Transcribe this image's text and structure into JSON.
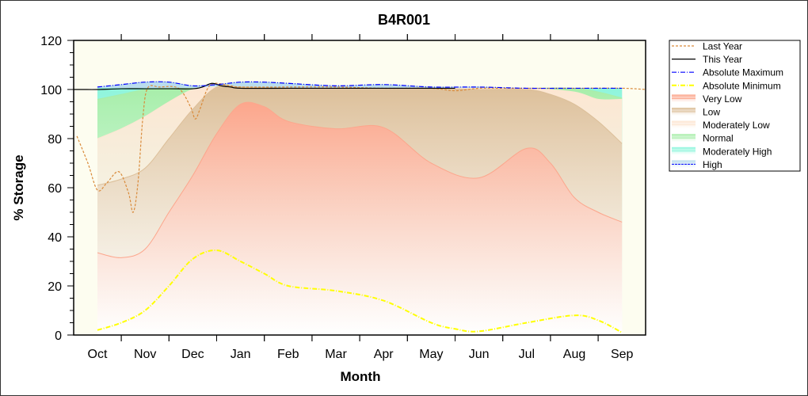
{
  "chart_data": {
    "type": "area",
    "title": "B4R001",
    "xlabel": "Month",
    "ylabel": "% Storage",
    "ylim": [
      0,
      120
    ],
    "yticks": [
      0,
      20,
      40,
      60,
      80,
      100,
      120
    ],
    "categories": [
      "Oct",
      "Nov",
      "Dec",
      "Jan",
      "Feb",
      "Mar",
      "Apr",
      "May",
      "Jun",
      "Jul",
      "Aug",
      "Sep"
    ],
    "legend_position": "right",
    "bands": [
      {
        "name": "High",
        "color": "#b9dced",
        "x": [
          0,
          0.5,
          1,
          1.5,
          2,
          2.5,
          3,
          3.5,
          4,
          5,
          6,
          7,
          8,
          9,
          10,
          11
        ],
        "top": [
          101,
          102,
          103,
          103,
          101.5,
          102,
          103,
          103,
          102.5,
          101.5,
          102,
          101,
          101,
          100.5,
          100.5,
          100.5
        ]
      },
      {
        "name": "Moderately High",
        "color": "#8ff5dc",
        "x": [
          0,
          1,
          2,
          3,
          4,
          5,
          6,
          7,
          8,
          9,
          10,
          11
        ],
        "top": [
          100.5,
          100.5,
          100.5,
          100.5,
          100.5,
          100.5,
          100.5,
          100.5,
          100.5,
          100.5,
          100.5,
          100.5
        ]
      },
      {
        "name": "Normal",
        "color": "#a8eeaa",
        "x": [
          0,
          0.5,
          1,
          1.5,
          2,
          2.5,
          3,
          4,
          5,
          6,
          7,
          8,
          9,
          10,
          10.5,
          11
        ],
        "top": [
          96,
          98,
          100,
          100.5,
          100.5,
          100.5,
          100.5,
          100.5,
          100.5,
          100.5,
          100.5,
          100.5,
          100.5,
          100.5,
          99,
          96.5
        ]
      },
      {
        "name": "Moderately Low",
        "color": "#fde6d2",
        "x": [
          0,
          0.5,
          1,
          1.5,
          2,
          2.5,
          3,
          4,
          5,
          6,
          7,
          8,
          9,
          10,
          10.5,
          11
        ],
        "top": [
          80,
          84,
          89,
          95,
          100,
          101,
          101,
          100.5,
          100.5,
          100.5,
          100.5,
          100.5,
          100.5,
          99,
          96,
          96
        ]
      },
      {
        "name": "Low",
        "color": "#dcbf99",
        "x": [
          0,
          0.5,
          1,
          1.5,
          2,
          2.5,
          3,
          4,
          5,
          6,
          7,
          8,
          9,
          9.5,
          10,
          10.5,
          11
        ],
        "top": [
          61,
          63.5,
          68,
          80,
          92,
          101,
          101,
          100.5,
          100.5,
          100.5,
          100.5,
          100,
          100,
          98,
          94,
          87,
          78
        ]
      },
      {
        "name": "Very Low",
        "color": "#fca68c",
        "x": [
          0,
          0.5,
          1,
          1.5,
          2,
          2.5,
          3,
          3.5,
          4,
          5,
          6,
          7,
          8,
          9,
          9.5,
          10,
          10.5,
          11
        ],
        "top": [
          33.5,
          31.5,
          35,
          50,
          65,
          82,
          94,
          93,
          87,
          84,
          84.5,
          70,
          64,
          76,
          70,
          56,
          50,
          46
        ]
      }
    ],
    "lines": [
      {
        "name": "Last Year",
        "color": "#d98a3a",
        "style": "dash",
        "x": [
          -0.43,
          -0.2,
          0,
          0.2,
          0.45,
          0.65,
          0.75,
          0.85,
          0.95,
          1.05,
          1.3,
          1.7,
          1.95,
          2.05,
          2.15,
          2.3,
          2.45,
          2.8,
          3,
          4,
          5,
          6,
          7,
          7.5,
          8,
          8.5,
          9,
          10,
          11,
          11.5
        ],
        "y": [
          81,
          70,
          59,
          62,
          66.5,
          58,
          50,
          62,
          88,
          100.5,
          101,
          100.5,
          93,
          88,
          92,
          100,
          102.5,
          101.5,
          101,
          101,
          101,
          100.5,
          100.5,
          99.5,
          100.5,
          100.5,
          100.5,
          100.5,
          100.5,
          100
        ]
      },
      {
        "name": "This Year",
        "color": "#000000",
        "style": "solid",
        "x": [
          -0.5,
          -0.3,
          0,
          0.5,
          1,
          1.5,
          2,
          2.2,
          2.4,
          2.6,
          2.8,
          3,
          4,
          5,
          6,
          7,
          7.5
        ],
        "y": [
          100,
          100,
          100,
          100.3,
          100.3,
          100.3,
          100.3,
          101,
          102.5,
          101.5,
          101,
          100.5,
          100.5,
          100.5,
          100.5,
          100.5,
          100.5
        ]
      },
      {
        "name": "Absolute Maximum",
        "color": "#0000ff",
        "style": "dashdot",
        "x": [
          0,
          0.5,
          1,
          1.5,
          2,
          2.5,
          3,
          3.5,
          4,
          5,
          6,
          7,
          8,
          9,
          10,
          11
        ],
        "y": [
          101,
          102,
          103,
          103,
          101.5,
          102,
          103,
          103,
          102.5,
          101.5,
          102,
          101,
          101,
          100.5,
          100.5,
          100.5
        ]
      },
      {
        "name": "Absolute Minimum",
        "color": "#ffff00",
        "style": "dashdot",
        "x": [
          0,
          0.5,
          1,
          1.5,
          2,
          2.5,
          3,
          3.5,
          4,
          5,
          6,
          7,
          7.5,
          8,
          9,
          10,
          10.5,
          11
        ],
        "y": [
          2,
          5,
          10,
          20,
          31,
          34.5,
          30,
          25,
          20,
          18,
          14,
          5,
          2.5,
          1.5,
          5,
          8,
          6,
          1
        ]
      }
    ],
    "legend": [
      "Last Year",
      "This Year",
      "Absolute Maximum",
      "Absolute Minimum",
      "Very Low",
      "Low",
      "Moderately Low",
      "Normal",
      "Moderately High",
      "High"
    ]
  }
}
